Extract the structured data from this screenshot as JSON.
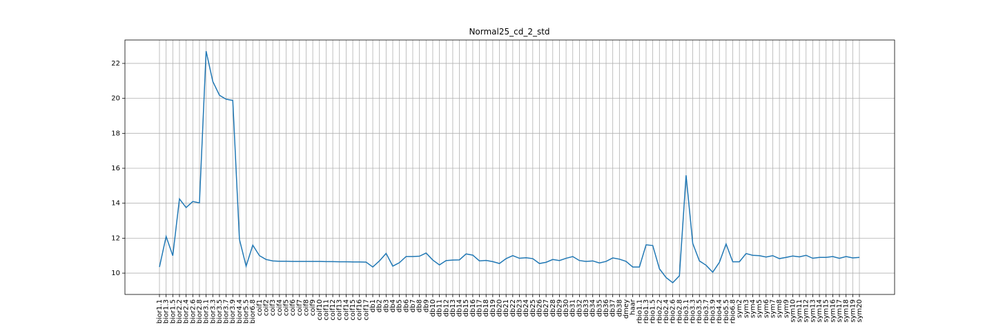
{
  "chart_data": {
    "type": "line",
    "title": "Normal25_cd_2_std",
    "categories": [
      "bior1.1",
      "bior1.3",
      "bior1.5",
      "bior2.2",
      "bior2.4",
      "bior2.6",
      "bior2.8",
      "bior3.1",
      "bior3.3",
      "bior3.5",
      "bior3.7",
      "bior3.9",
      "bior4.4",
      "bior5.5",
      "bior6.8",
      "coif1",
      "coif2",
      "coif3",
      "coif4",
      "coif5",
      "coif6",
      "coif7",
      "coif8",
      "coif9",
      "coif10",
      "coif11",
      "coif12",
      "coif13",
      "coif14",
      "coif15",
      "coif16",
      "coif17",
      "db1",
      "db2",
      "db3",
      "db4",
      "db5",
      "db6",
      "db7",
      "db8",
      "db9",
      "db10",
      "db11",
      "db12",
      "db13",
      "db14",
      "db15",
      "db16",
      "db17",
      "db18",
      "db19",
      "db20",
      "db21",
      "db22",
      "db23",
      "db24",
      "db25",
      "db26",
      "db27",
      "db28",
      "db29",
      "db30",
      "db31",
      "db32",
      "db33",
      "db34",
      "db35",
      "db36",
      "db37",
      "db38",
      "dmey",
      "haar",
      "rbio1.1",
      "rbio1.3",
      "rbio1.5",
      "rbio2.2",
      "rbio2.4",
      "rbio2.6",
      "rbio2.8",
      "rbio3.1",
      "rbio3.3",
      "rbio3.5",
      "rbio3.7",
      "rbio3.9",
      "rbio4.4",
      "rbio5.5",
      "rbio6.8",
      "sym2",
      "sym3",
      "sym4",
      "sym5",
      "sym6",
      "sym7",
      "sym8",
      "sym9",
      "sym10",
      "sym11",
      "sym12",
      "sym13",
      "sym14",
      "sym15",
      "sym16",
      "sym17",
      "sym18",
      "sym19",
      "sym20"
    ],
    "series": [
      {
        "color": "#1f77b4",
        "values": [
          10.35,
          12.1,
          11.0,
          14.25,
          13.75,
          14.1,
          14.02,
          22.7,
          20.97,
          20.18,
          19.95,
          19.88,
          11.93,
          10.4,
          11.6,
          11.0,
          10.78,
          10.7,
          10.68,
          10.68,
          10.67,
          10.67,
          10.67,
          10.67,
          10.67,
          10.66,
          10.66,
          10.65,
          10.65,
          10.64,
          10.64,
          10.63,
          10.35,
          10.7,
          11.13,
          10.4,
          10.6,
          10.95,
          10.95,
          10.97,
          11.15,
          10.75,
          10.47,
          10.72,
          10.75,
          10.76,
          11.1,
          11.03,
          10.7,
          10.73,
          10.66,
          10.55,
          10.83,
          11.0,
          10.85,
          10.88,
          10.83,
          10.55,
          10.62,
          10.78,
          10.72,
          10.85,
          10.95,
          10.72,
          10.67,
          10.7,
          10.58,
          10.67,
          10.87,
          10.8,
          10.67,
          10.35,
          10.35,
          11.62,
          11.58,
          10.25,
          9.75,
          9.45,
          9.85,
          15.6,
          11.7,
          10.7,
          10.45,
          10.05,
          10.62,
          11.67,
          10.65,
          10.65,
          11.12,
          11.02,
          11.0,
          10.92,
          11.0,
          10.83,
          10.9,
          10.98,
          10.93,
          11.02,
          10.85,
          10.9,
          10.9,
          10.95,
          10.85,
          10.95,
          10.87,
          10.9
        ]
      }
    ],
    "ylim": [
      8.78,
      23.34
    ],
    "yticks": [
      10,
      12,
      14,
      16,
      18,
      20,
      22
    ],
    "grid": true
  }
}
